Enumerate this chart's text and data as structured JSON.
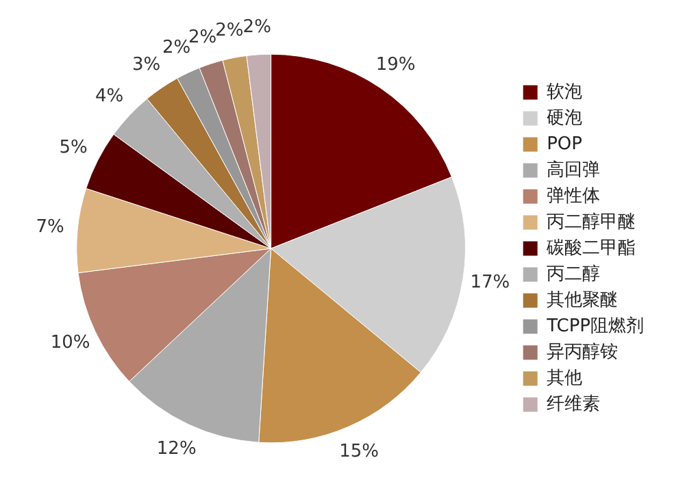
{
  "chart_data": {
    "type": "pie",
    "categories": [
      "软泡",
      "硬泡",
      "POP",
      "高回弹",
      "弹性体",
      "丙二醇甲醚",
      "碳酸二甲酯",
      "丙二醇",
      "其他聚醚",
      "TCPP阻燃剂",
      "异丙醇铵",
      "其他",
      "纤维素"
    ],
    "values": [
      19,
      17,
      15,
      12,
      10,
      7,
      5,
      4,
      3,
      2,
      2,
      2,
      2
    ],
    "value_labels": [
      "19%",
      "17%",
      "15%",
      "12%",
      "10%",
      "7%",
      "5%",
      "4%",
      "3%",
      "2%",
      "2%",
      "2%",
      "2%"
    ],
    "colors": [
      "#6e0000",
      "#cfcfcf",
      "#c38f4a",
      "#ababab",
      "#b7806f",
      "#dcb37e",
      "#560000",
      "#b0b0b0",
      "#a57436",
      "#979797",
      "#a0756b",
      "#c29a5e",
      "#c2adb0"
    ],
    "legend": "right"
  }
}
